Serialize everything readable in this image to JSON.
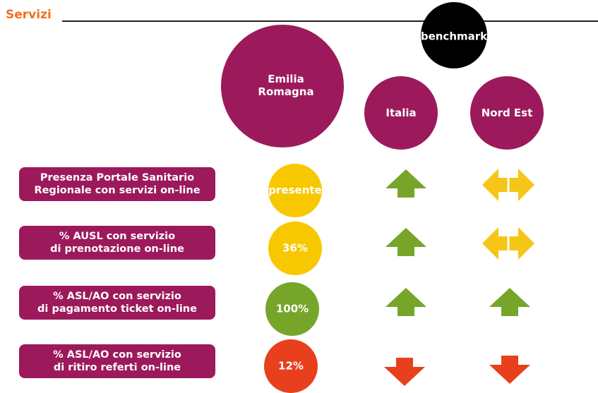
{
  "header": {
    "title": "Servizi",
    "benchmark": "benchmark",
    "columns": [
      [
        "Emilia",
        "Romagna"
      ],
      [
        "Italia"
      ],
      [
        "Nord Est"
      ]
    ]
  },
  "rows": [
    {
      "label": [
        "Presenza Portale Sanitario",
        "Regionale con servizi on-line"
      ],
      "value": "presente"
    },
    {
      "label": [
        "% AUSL con servizio",
        "di prenotazione on-line"
      ],
      "value": "36%"
    },
    {
      "label": [
        "% ASL/AO con servizio",
        "di pagamento ticket on-line"
      ],
      "value": "100%"
    },
    {
      "label": [
        "% ASL/AO con servizio",
        "di ritiro referti on-line"
      ],
      "value": "12%"
    }
  ]
}
